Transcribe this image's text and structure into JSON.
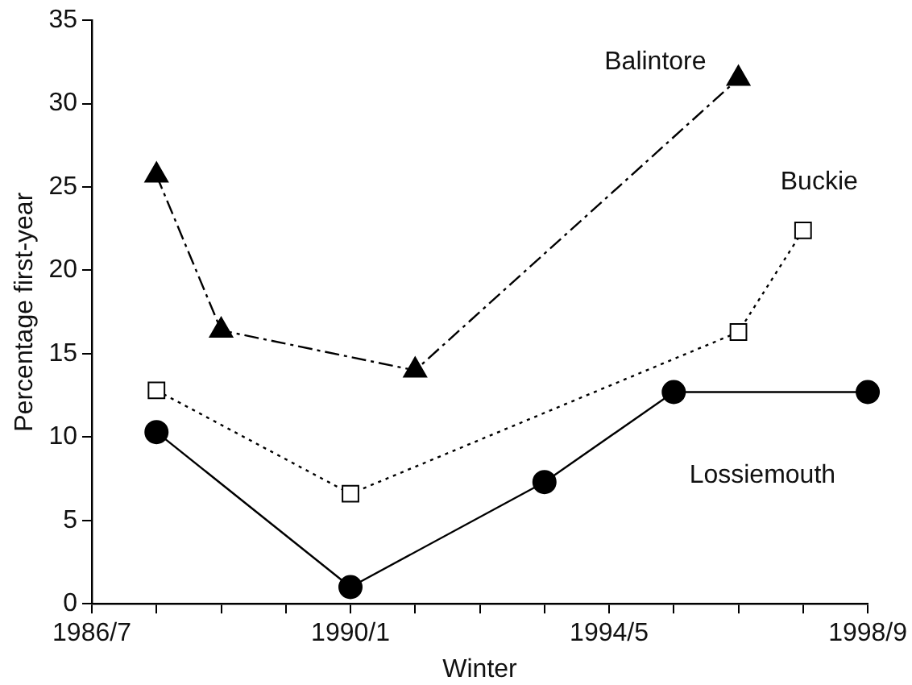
{
  "chart_data": {
    "type": "line",
    "xlabel": "Winter",
    "ylabel": "Percentage first-year",
    "categories": [
      "1986/7",
      null,
      null,
      null,
      "1990/1",
      null,
      null,
      null,
      "1994/5",
      null,
      null,
      null,
      "1998/9"
    ],
    "ylim": [
      0,
      35
    ],
    "yticks": [
      0,
      5,
      10,
      15,
      20,
      25,
      30,
      35
    ],
    "grid": false,
    "legend": false,
    "series": [
      {
        "name": "Balintore",
        "color": "#000000",
        "marker": "triangle",
        "line_style": "dashed",
        "values": [
          null,
          25.7,
          16.4,
          null,
          null,
          14.0,
          null,
          null,
          null,
          null,
          31.5,
          null,
          null
        ]
      },
      {
        "name": "Buckie",
        "color": "#000000",
        "marker": "square",
        "line_style": "dotted",
        "values": [
          null,
          12.8,
          null,
          null,
          6.6,
          null,
          null,
          null,
          null,
          null,
          16.3,
          22.4,
          null
        ]
      },
      {
        "name": "Lossiemouth",
        "color": "#000000",
        "marker": "circle",
        "line_style": "solid",
        "values": [
          null,
          10.3,
          null,
          null,
          1.0,
          null,
          null,
          7.3,
          null,
          12.7,
          null,
          null,
          12.7
        ]
      }
    ]
  }
}
